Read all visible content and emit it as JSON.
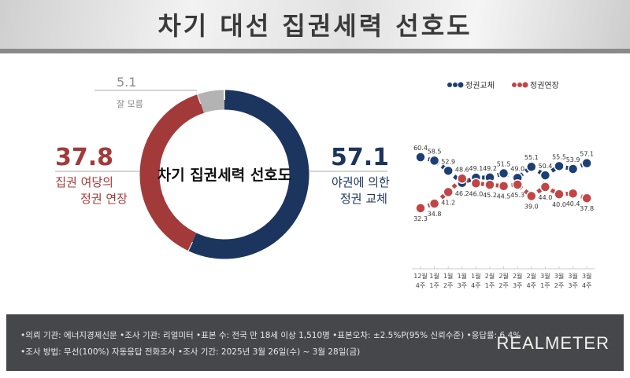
{
  "header": {
    "title": "차기 대선 집권세력 선호도"
  },
  "donut": {
    "center_label": "차기 집권세력 선호도",
    "slices": [
      {
        "label_lines": [
          "야권에 의한",
          "정권 교체"
        ],
        "value": 57.1,
        "value_text": "57.1",
        "color": "#1c355e"
      },
      {
        "label_lines": [
          "집권 여당의",
          "정권 연장"
        ],
        "value": 37.8,
        "value_text": "37.8",
        "color": "#a33a3a"
      },
      {
        "label_lines": [
          "잘 모름"
        ],
        "value": 5.1,
        "value_text": "5.1",
        "color": "#b3b3b3"
      }
    ]
  },
  "chart_data": {
    "type": "line",
    "categories": [
      "12월 4주",
      "1월 1주",
      "1월 2주",
      "1월 3주",
      "1월 4주",
      "2월 1주",
      "2월 2주",
      "2월 3주",
      "2월 4주",
      "3월 1주",
      "3월 2주",
      "3월 3주",
      "3월 4주"
    ],
    "series": [
      {
        "name": "정권교체",
        "color": "#1c3f73",
        "values": [
          60.4,
          58.5,
          52.9,
          46.2,
          49.1,
          49.2,
          51.5,
          49.0,
          55.1,
          50.4,
          55.5,
          53.9,
          57.1
        ],
        "labels": [
          "60.4",
          "58.5",
          "52.9",
          "46.2",
          "49.1",
          "49.2",
          "51.5",
          "49.0",
          "55.1",
          "50.4",
          "55.5",
          "53.9",
          "57.1"
        ]
      },
      {
        "name": "정권연장",
        "color": "#c24545",
        "values": [
          32.3,
          34.8,
          41.2,
          48.6,
          46.0,
          45.2,
          44.5,
          45.3,
          39.0,
          44.0,
          40.0,
          40.4,
          37.8
        ],
        "labels": [
          "32.3",
          "34.8",
          "41.2",
          "48.6",
          "46.0",
          "45.2",
          "44.5",
          "45.3",
          "39.0",
          "44.0",
          "40.0",
          "40.4",
          "37.8"
        ]
      }
    ],
    "legend": "top"
  },
  "footer": {
    "line1": "•의뢰 기관: 에너지경제신문 •조사 기관: 리얼미터 •표본 수: 전국 만 18세 이상 1,510명 •표본오차: ±2.5%P(95% 신뢰수준) •응답률: 6.4%",
    "line2": "•조사 방법: 무선(100%) 자동응답 전화조사 •조사 기간: 2025년 3월 26일(수) ~ 3월 28일(금)",
    "logo": "REALMETER"
  }
}
